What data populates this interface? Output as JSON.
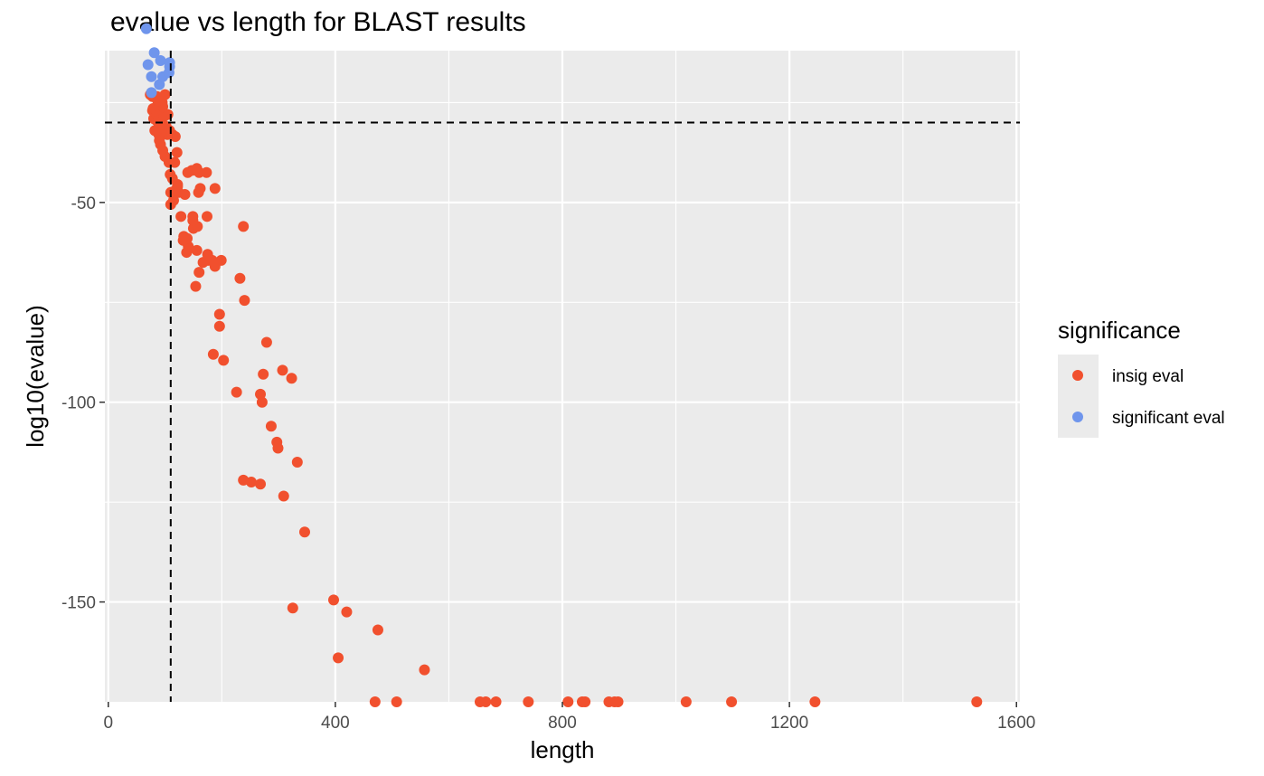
{
  "chart_data": {
    "type": "scatter",
    "title": "evalue vs length for BLAST results",
    "xlabel": "length",
    "ylabel": "log10(evalue)",
    "xlim": [
      -6,
      1606
    ],
    "ylim": [
      -175,
      -12
    ],
    "x_ticks": [
      0,
      400,
      800,
      1200,
      1600
    ],
    "x_tick_labels": [
      "0",
      "400",
      "800",
      "1200",
      "1600"
    ],
    "y_ticks": [
      -150,
      -100,
      -50
    ],
    "y_tick_labels": [
      "-150",
      "-100",
      "-50"
    ],
    "grid": true,
    "reference_lines": {
      "vertical_x": 110,
      "horizontal_y": -30
    },
    "legend": {
      "title": "significance",
      "placement": "right",
      "entries": [
        {
          "label": "insig eval",
          "color": "#F1502E"
        },
        {
          "label": "significant eval",
          "color": "#6F95EC"
        }
      ]
    },
    "series": [
      {
        "name": "insig eval",
        "color": "#F1502E",
        "points": [
          [
            470,
            -175
          ],
          [
            508,
            -175
          ],
          [
            655,
            -175
          ],
          [
            665,
            -175
          ],
          [
            683,
            -175
          ],
          [
            740,
            -175
          ],
          [
            810,
            -175
          ],
          [
            835,
            -175
          ],
          [
            840,
            -175
          ],
          [
            882,
            -175
          ],
          [
            892,
            -175
          ],
          [
            898,
            -175
          ],
          [
            1018,
            -175
          ],
          [
            1098,
            -175
          ],
          [
            1245,
            -175
          ],
          [
            1530,
            -175
          ],
          [
            557,
            -167
          ],
          [
            405,
            -164
          ],
          [
            475,
            -157
          ],
          [
            420,
            -152.5
          ],
          [
            325,
            -151.5
          ],
          [
            397,
            -149.5
          ],
          [
            346,
            -132.5
          ],
          [
            309,
            -123.5
          ],
          [
            268,
            -120.5
          ],
          [
            252,
            -120
          ],
          [
            238,
            -119.5
          ],
          [
            333,
            -115
          ],
          [
            299,
            -111.5
          ],
          [
            297,
            -110
          ],
          [
            287,
            -106
          ],
          [
            271,
            -100
          ],
          [
            268,
            -98
          ],
          [
            226,
            -97.5
          ],
          [
            323,
            -94
          ],
          [
            273,
            -93
          ],
          [
            307,
            -92
          ],
          [
            203,
            -89.5
          ],
          [
            185,
            -88
          ],
          [
            279,
            -85
          ],
          [
            196,
            -81
          ],
          [
            196,
            -78
          ],
          [
            240,
            -74.5
          ],
          [
            154,
            -71
          ],
          [
            232,
            -69
          ],
          [
            160,
            -67.5
          ],
          [
            188,
            -66
          ],
          [
            167,
            -65
          ],
          [
            176,
            -64.5
          ],
          [
            183,
            -64.5
          ],
          [
            199,
            -64.5
          ],
          [
            175,
            -63
          ],
          [
            138,
            -62.5
          ],
          [
            156,
            -62
          ],
          [
            141,
            -61
          ],
          [
            132,
            -59.5
          ],
          [
            139,
            -59
          ],
          [
            133,
            -58.5
          ],
          [
            150,
            -56.5
          ],
          [
            157,
            -56
          ],
          [
            238,
            -56
          ],
          [
            149,
            -54.5
          ],
          [
            149,
            -53.5
          ],
          [
            128,
            -53.5
          ],
          [
            174,
            -53.5
          ],
          [
            110,
            -50.5
          ],
          [
            115,
            -49.5
          ],
          [
            135,
            -48
          ],
          [
            110,
            -47.5
          ],
          [
            124,
            -47.5
          ],
          [
            118,
            -47
          ],
          [
            159,
            -47.5
          ],
          [
            162,
            -46.5
          ],
          [
            188,
            -46.5
          ],
          [
            122,
            -46
          ],
          [
            122,
            -45.5
          ],
          [
            113,
            -44
          ],
          [
            109,
            -43
          ],
          [
            140,
            -42.5
          ],
          [
            147,
            -42
          ],
          [
            156,
            -41.5
          ],
          [
            160,
            -42.5
          ],
          [
            173,
            -42.5
          ],
          [
            107,
            -40
          ],
          [
            117,
            -40
          ],
          [
            121,
            -37.5
          ],
          [
            100,
            -38.5
          ],
          [
            96,
            -37
          ],
          [
            92,
            -35.5
          ],
          [
            90,
            -34.5
          ],
          [
            118,
            -33.5
          ],
          [
            113,
            -33
          ],
          [
            104,
            -33
          ],
          [
            108,
            -32
          ],
          [
            89,
            -33
          ],
          [
            82,
            -32
          ],
          [
            86,
            -32
          ],
          [
            91,
            -31.5
          ],
          [
            96,
            -31.5
          ],
          [
            102,
            -31
          ],
          [
            95,
            -30.5
          ],
          [
            85,
            -29.5
          ],
          [
            80,
            -29
          ],
          [
            92,
            -28
          ],
          [
            98,
            -28.5
          ],
          [
            105,
            -28
          ],
          [
            88,
            -28.5
          ],
          [
            83,
            -27.5
          ],
          [
            78,
            -27
          ],
          [
            79,
            -26.5
          ],
          [
            84,
            -27
          ],
          [
            91,
            -26.5
          ],
          [
            96,
            -26
          ],
          [
            95,
            -25
          ],
          [
            87,
            -24.5
          ],
          [
            86,
            -23.5
          ],
          [
            100,
            -23
          ],
          [
            78,
            -23.5
          ],
          [
            74,
            -23
          ]
        ]
      },
      {
        "name": "significant eval",
        "color": "#6F95EC",
        "points": [
          [
            76,
            -22.5
          ],
          [
            90,
            -20.5
          ],
          [
            76,
            -18.5
          ],
          [
            96,
            -18.5
          ],
          [
            107,
            -17.5
          ],
          [
            108,
            -16
          ],
          [
            70,
            -15.5
          ],
          [
            92,
            -14.5
          ],
          [
            108,
            -15
          ],
          [
            81,
            -12.5
          ],
          [
            67,
            -6.5
          ]
        ]
      }
    ]
  }
}
